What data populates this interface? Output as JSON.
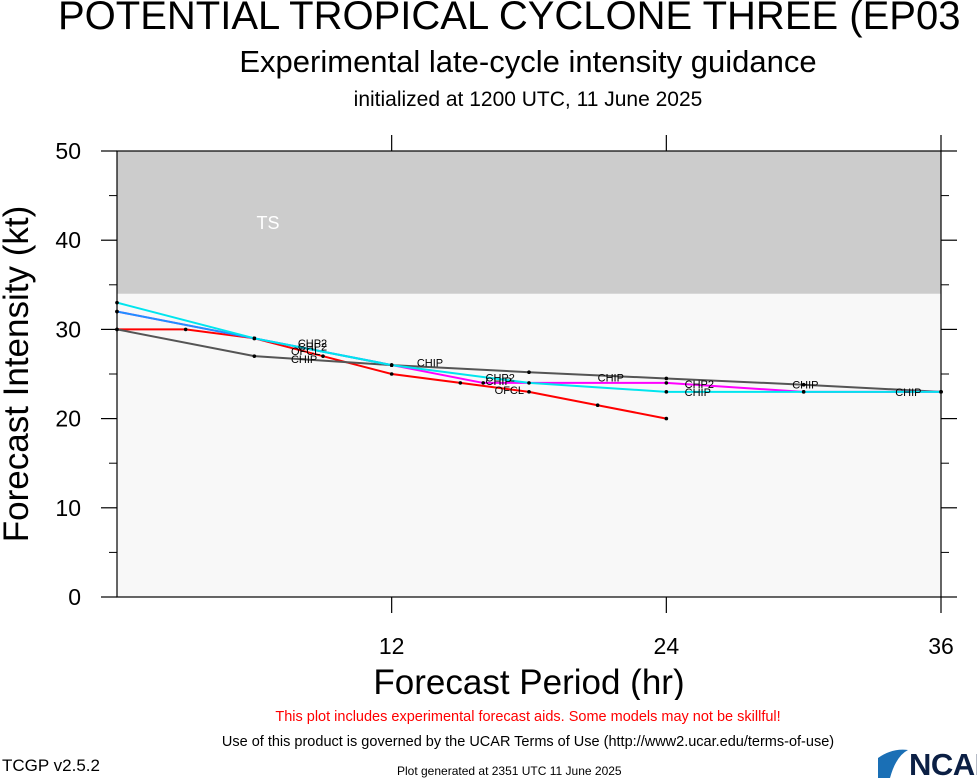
{
  "header": {
    "title": "POTENTIAL TROPICAL CYCLONE THREE (EP03",
    "subtitle": "Experimental late-cycle intensity guidance",
    "initialized": "initialized at 1200 UTC, 11 June 2025"
  },
  "footer": {
    "disclaimer": "This plot includes experimental forecast aids. Some models may not be skillful!",
    "terms": "Use of this product is governed by the UCAR Terms of Use (http://www2.ucar.edu/terms-of-use)",
    "version": "TCGP v2.5.2",
    "generated": "Plot generated at 2351 UTC   11 June 2025",
    "logo": "NCAR"
  },
  "colors": {
    "ts_band": "#cccccc",
    "plot_bg": "#f8f8f8",
    "disclaimer": "#ff0000"
  },
  "chart_data": {
    "type": "line",
    "xlabel": "Forecast Period (hr)",
    "ylabel": "Forecast Intensity (kt)",
    "xlim": [
      0,
      36
    ],
    "ylim": [
      0,
      50
    ],
    "xticks": [
      12,
      24,
      36
    ],
    "yticks": [
      0,
      10,
      20,
      30,
      40,
      50
    ],
    "bands": [
      {
        "label": "TS",
        "y0": 34,
        "y1": 50,
        "color": "#cccccc"
      }
    ],
    "series": [
      {
        "name": "OFCL",
        "color": "#ff0000",
        "x": [
          0,
          3,
          6,
          9,
          12,
          15,
          18,
          21,
          24
        ],
        "y": [
          30,
          30,
          29,
          27,
          25,
          24,
          23,
          21.5,
          20
        ]
      },
      {
        "name": "CHIP",
        "color": "#555555",
        "x": [
          0,
          6,
          12,
          18,
          24,
          30,
          36
        ],
        "y": [
          30,
          27,
          26,
          25.2,
          24.5,
          23.8,
          23
        ]
      },
      {
        "name": "CHP2",
        "color": "#ff00ff",
        "x": [
          0,
          6,
          12,
          16,
          24,
          30,
          36
        ],
        "y": [
          32,
          29,
          26,
          24,
          24,
          23,
          23
        ]
      },
      {
        "name": "",
        "color": "#1e90ff",
        "x": [
          0,
          6,
          12
        ],
        "y": [
          32,
          29,
          26
        ]
      },
      {
        "name": "",
        "color": "#00e5ee",
        "x": [
          0,
          6,
          12,
          18,
          24,
          30,
          36
        ],
        "y": [
          33,
          29,
          26,
          24,
          23,
          23,
          23
        ]
      }
    ],
    "labels": [
      {
        "text": "CHP2",
        "x": 7.9,
        "y": 28.5
      },
      {
        "text": "CHP2",
        "x": 7.9,
        "y": 28.1
      },
      {
        "text": "OFCL",
        "x": 7.6,
        "y": 27.6
      },
      {
        "text": "CHIP",
        "x": 7.6,
        "y": 26.7
      },
      {
        "text": "CHIP",
        "x": 13.1,
        "y": 26.3
      },
      {
        "text": "CHP2",
        "x": 16.1,
        "y": 24.6
      },
      {
        "text": "CHIP",
        "x": 16.1,
        "y": 24.2
      },
      {
        "text": "OFCL",
        "x": 16.5,
        "y": 23.2
      },
      {
        "text": "CHIP",
        "x": 21.0,
        "y": 24.6
      },
      {
        "text": "CHP2",
        "x": 24.8,
        "y": 23.9
      },
      {
        "text": "CHIP",
        "x": 24.8,
        "y": 23.0
      },
      {
        "text": "CHIP",
        "x": 29.5,
        "y": 23.8
      },
      {
        "text": "CHIP",
        "x": 34.0,
        "y": 23.0
      }
    ]
  }
}
